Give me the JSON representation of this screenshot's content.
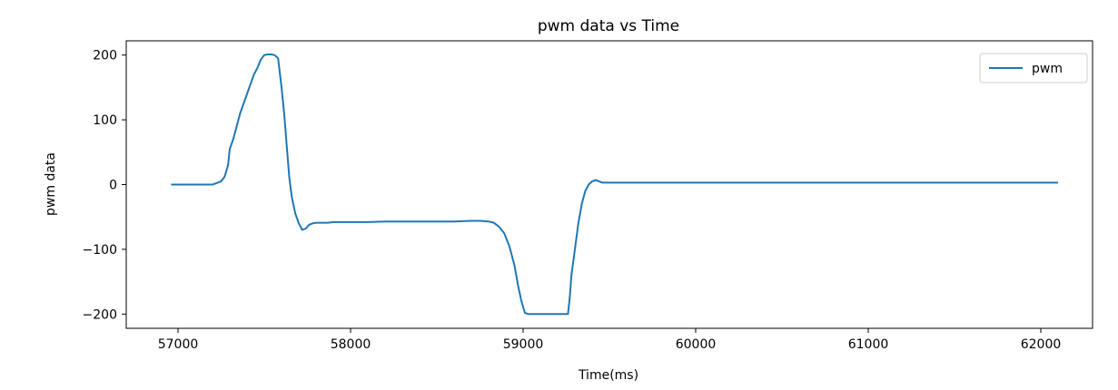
{
  "chart_data": {
    "type": "line",
    "title": "pwm data vs Time",
    "xlabel": "Time(ms)",
    "ylabel": "pwm data",
    "xlim": [
      56700,
      62300
    ],
    "ylim": [
      -222,
      222
    ],
    "x_ticks": [
      57000,
      58000,
      59000,
      60000,
      61000,
      62000
    ],
    "y_ticks": [
      -200,
      -100,
      0,
      100,
      200
    ],
    "y_tick_labels": [
      "−200",
      "−100",
      "0",
      "100",
      "200"
    ],
    "grid": false,
    "legend": {
      "position": "top-right",
      "entries": [
        "pwm"
      ]
    },
    "colors": {
      "line": "#1f77b4",
      "legend_border": "#cccccc",
      "axes": "#000000"
    },
    "series": [
      {
        "name": "pwm",
        "x": [
          56960,
          57100,
          57200,
          57230,
          57250,
          57270,
          57290,
          57300,
          57320,
          57340,
          57360,
          57380,
          57400,
          57420,
          57440,
          57460,
          57480,
          57500,
          57520,
          57540,
          57560,
          57580,
          57600,
          57615,
          57630,
          57645,
          57660,
          57680,
          57700,
          57720,
          57740,
          57760,
          57780,
          57800,
          57830,
          57870,
          57900,
          58000,
          58100,
          58200,
          58300,
          58400,
          58500,
          58600,
          58700,
          58750,
          58800,
          58830,
          58860,
          58890,
          58920,
          58950,
          58970,
          58990,
          59010,
          59030,
          59100,
          59180,
          59260,
          59270,
          59280,
          59300,
          59320,
          59340,
          59360,
          59380,
          59400,
          59420,
          59440,
          59460,
          59500,
          60000,
          61000,
          62100
        ],
        "y": [
          0,
          0,
          0,
          3,
          5,
          12,
          30,
          55,
          70,
          90,
          110,
          125,
          140,
          155,
          170,
          180,
          193,
          200,
          201,
          201,
          200,
          195,
          150,
          110,
          60,
          10,
          -20,
          -45,
          -60,
          -70,
          -68,
          -62,
          -60,
          -59,
          -59,
          -59,
          -58,
          -58,
          -58,
          -57,
          -57,
          -57,
          -57,
          -57,
          -56,
          -56,
          -57,
          -59,
          -65,
          -75,
          -95,
          -125,
          -155,
          -180,
          -198,
          -200,
          -200,
          -200,
          -200,
          -175,
          -140,
          -100,
          -60,
          -30,
          -10,
          0,
          5,
          7,
          5,
          3,
          3,
          3,
          3,
          3
        ]
      }
    ]
  }
}
